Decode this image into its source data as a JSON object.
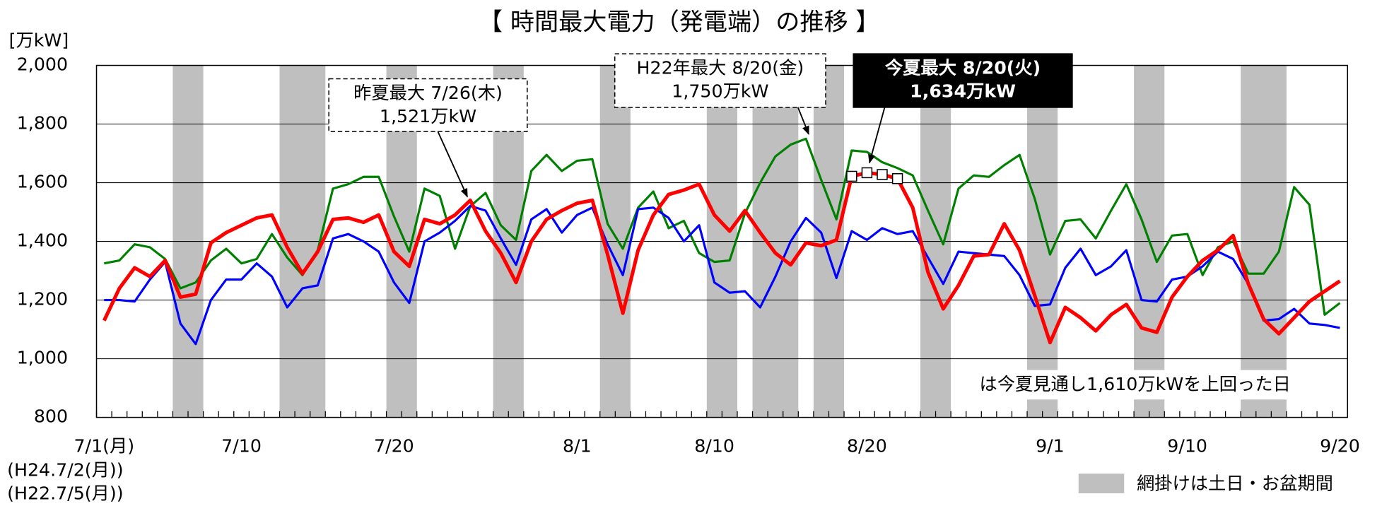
{
  "chart_data": {
    "type": "line",
    "title": "【 時間最大電力（発電端）の推移 】",
    "y_label": "[万kW]",
    "categories": [
      "7/1(月)",
      null,
      null,
      null,
      null,
      null,
      null,
      null,
      null,
      "7/10",
      null,
      null,
      null,
      null,
      null,
      null,
      null,
      null,
      null,
      "7/20",
      null,
      null,
      null,
      null,
      null,
      null,
      null,
      null,
      null,
      null,
      null,
      "8/1",
      null,
      null,
      null,
      null,
      null,
      null,
      null,
      null,
      "8/10",
      null,
      null,
      null,
      null,
      null,
      null,
      null,
      null,
      null,
      "8/20",
      null,
      null,
      null,
      null,
      null,
      null,
      null,
      null,
      null,
      null,
      null,
      "9/1",
      null,
      null,
      null,
      null,
      null,
      null,
      null,
      null,
      "9/10",
      null,
      null,
      null,
      null,
      null,
      null,
      null,
      null,
      null,
      "9/20"
    ],
    "x_sublabels": [
      "(H24.7/2(月))",
      "(H22.7/5(月))"
    ],
    "ylim": [
      800,
      2000
    ],
    "yticks": [
      800,
      {
        "value": 1000,
        "label": "1,000"
      },
      {
        "value": 1200,
        "label": "1,200"
      },
      {
        "value": 1400,
        "label": "1,400"
      },
      {
        "value": 1600,
        "label": "1,600"
      },
      {
        "value": 1800,
        "label": "1,800"
      },
      {
        "value": 2000,
        "label": "2,000"
      }
    ],
    "grid": true,
    "series": [
      {
        "color": "#ff0000",
        "values": [
          1130,
          1240,
          1310,
          1280,
          1335,
          1210,
          1220,
          1395,
          1430,
          1455,
          1480,
          1490,
          1380,
          1290,
          1365,
          1475,
          1480,
          1465,
          1490,
          1365,
          1315,
          1475,
          1460,
          1490,
          1540,
          1435,
          1360,
          1260,
          1400,
          1475,
          1505,
          1530,
          1540,
          1355,
          1155,
          1370,
          1490,
          1560,
          1575,
          1595,
          1490,
          1435,
          1505,
          1430,
          1360,
          1320,
          1395,
          1385,
          1405,
          1622,
          1634,
          1628,
          1614,
          1515,
          1295,
          1170,
          1250,
          1350,
          1355,
          1460,
          1370,
          1215,
          1055,
          1175,
          1140,
          1095,
          1150,
          1185,
          1105,
          1090,
          1210,
          1280,
          1335,
          1370,
          1420,
          1255,
          1135,
          1085,
          1140,
          1195,
          1230,
          1265
        ]
      },
      {
        "color": "#0000ff",
        "values": [
          1200,
          1200,
          1195,
          1270,
          1330,
          1120,
          1050,
          1200,
          1270,
          1270,
          1325,
          1280,
          1175,
          1240,
          1250,
          1410,
          1425,
          1400,
          1365,
          1260,
          1190,
          1400,
          1430,
          1470,
          1521,
          1505,
          1410,
          1320,
          1475,
          1510,
          1430,
          1490,
          1515,
          1390,
          1285,
          1510,
          1515,
          1480,
          1400,
          1455,
          1260,
          1225,
          1230,
          1175,
          1280,
          1400,
          1480,
          1430,
          1275,
          1435,
          1405,
          1445,
          1425,
          1435,
          1345,
          1255,
          1365,
          1360,
          1355,
          1350,
          1285,
          1180,
          1185,
          1310,
          1375,
          1285,
          1315,
          1370,
          1200,
          1195,
          1270,
          1280,
          1315,
          1365,
          1340,
          1255,
          1130,
          1135,
          1170,
          1120,
          1115,
          1105
        ]
      },
      {
        "color": "#008000",
        "values": [
          1325,
          1335,
          1390,
          1380,
          1340,
          1240,
          1260,
          1335,
          1375,
          1325,
          1340,
          1425,
          1345,
          1285,
          1370,
          1580,
          1595,
          1620,
          1620,
          1485,
          1365,
          1580,
          1555,
          1375,
          1520,
          1565,
          1455,
          1405,
          1640,
          1695,
          1640,
          1675,
          1680,
          1460,
          1375,
          1515,
          1570,
          1445,
          1470,
          1360,
          1330,
          1335,
          1495,
          1600,
          1690,
          1730,
          1750,
          1610,
          1475,
          1710,
          1705,
          1670,
          1650,
          1625,
          1505,
          1390,
          1580,
          1625,
          1620,
          1660,
          1695,
          1545,
          1355,
          1470,
          1475,
          1410,
          1505,
          1595,
          1475,
          1330,
          1420,
          1425,
          1285,
          1380,
          1400,
          1290,
          1290,
          1365,
          1585,
          1525,
          1150,
          1190
        ]
      }
    ],
    "highlight": {
      "series": 0,
      "indices": [
        49,
        50,
        51,
        52
      ]
    },
    "shaded_ranges": [
      [
        5,
        6
      ],
      [
        12,
        14
      ],
      [
        19,
        20
      ],
      [
        26,
        27
      ],
      [
        33,
        34
      ],
      [
        40,
        41
      ],
      [
        43,
        45
      ],
      [
        47,
        48
      ],
      [
        54,
        55
      ],
      [
        61,
        62
      ],
      [
        68,
        69
      ],
      [
        75,
        77
      ]
    ],
    "shade_color": "#bfbfbf",
    "annotations": [
      {
        "lines": [
          "昨夏最大 7/26(木)",
          "1,521万kW"
        ],
        "style": "dashed"
      },
      {
        "lines": [
          "H22年最大 8/20(金)",
          "1,750万kW"
        ],
        "style": "dashed"
      },
      {
        "lines": [
          "今夏最大 8/20(火)",
          "1,634万kW"
        ],
        "style": "filled"
      }
    ],
    "highlight_note": "は今夏見通し1,610万kWを上回った日",
    "shade_legend": "網掛けは土日・お盆期間"
  }
}
